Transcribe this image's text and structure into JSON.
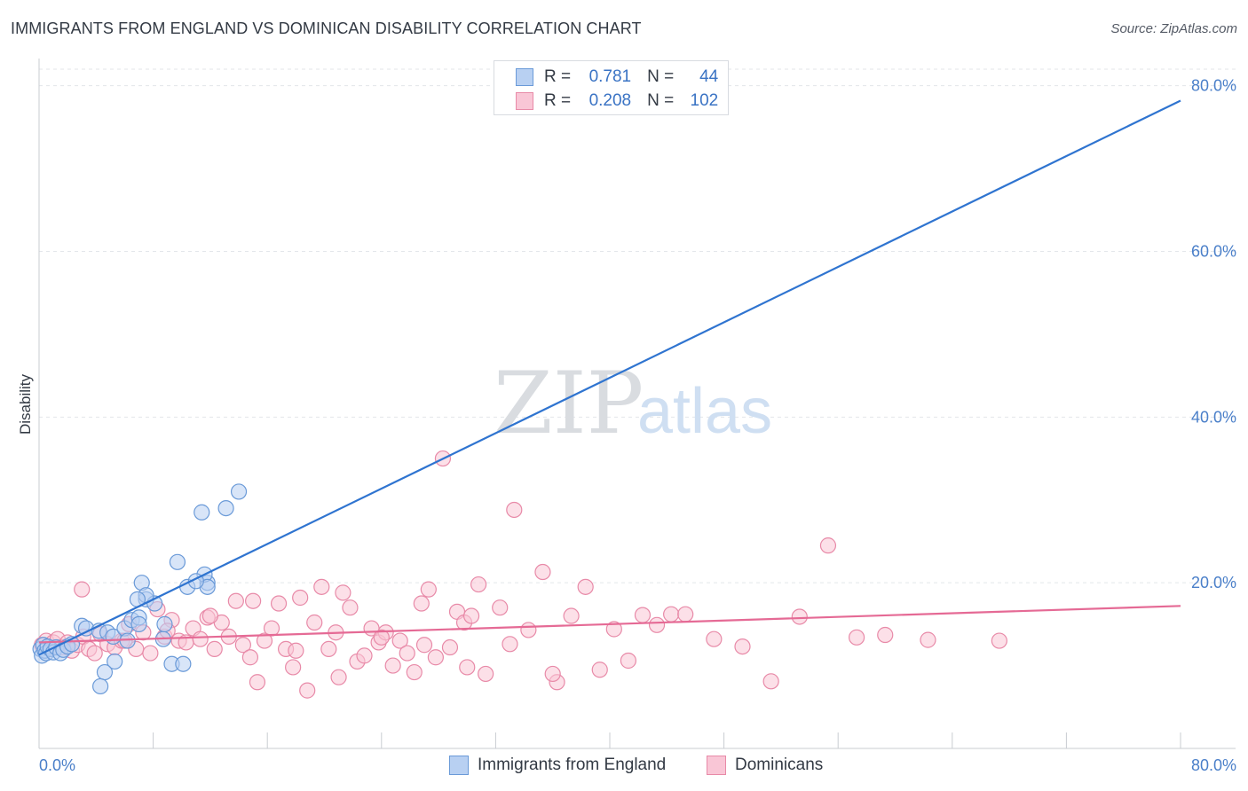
{
  "title": "IMMIGRANTS FROM ENGLAND VS DOMINICAN DISABILITY CORRELATION CHART",
  "source": "Source: ZipAtlas.com",
  "watermark": {
    "zip": "ZIP",
    "atlas": "atlas"
  },
  "legend": {
    "r_label": "R =",
    "n_label": "N =",
    "rows": [
      {
        "r": "0.781",
        "n": "44"
      },
      {
        "r": "0.208",
        "n": "102"
      }
    ]
  },
  "colors": {
    "blue_fill": "#b8d0f2",
    "blue_stroke": "#6a9ad8",
    "blue_line": "#2f74d0",
    "pink_fill": "#f9c6d6",
    "pink_stroke": "#e88aa8",
    "pink_line": "#e56a95"
  },
  "chart_data": {
    "type": "scatter",
    "title": "IMMIGRANTS FROM ENGLAND VS DOMINICAN DISABILITY CORRELATION CHART",
    "xlabel": "",
    "ylabel": "Disability",
    "xlim": [
      0,
      80
    ],
    "ylim": [
      0,
      82
    ],
    "x_tick_labels": [
      "0.0%",
      "80.0%"
    ],
    "y_ticks": [
      20,
      40,
      60,
      80
    ],
    "y_tick_labels": [
      "20.0%",
      "40.0%",
      "60.0%",
      "80.0%"
    ],
    "grid": true,
    "legend_position": "top-center",
    "series": [
      {
        "name": "Immigrants from England",
        "r": 0.781,
        "n": 44,
        "trend": {
          "x": [
            0,
            80
          ],
          "y": [
            11.3,
            78.2
          ]
        },
        "x": [
          0.1,
          0.2,
          0.3,
          0.4,
          0.5,
          0.6,
          0.8,
          1.0,
          1.2,
          1.5,
          1.7,
          2.0,
          2.3,
          3.0,
          3.3,
          4.2,
          4.8,
          5.2,
          6.0,
          6.5,
          7.0,
          7.5,
          8.1,
          8.7,
          8.8,
          9.7,
          9.3,
          10.1,
          11.4,
          11.8,
          13.1,
          14.0,
          11.6,
          11.8,
          10.4,
          11.0,
          7.2,
          7.5,
          6.9,
          7.0,
          6.2,
          5.3,
          4.6,
          4.3
        ],
        "y": [
          12.0,
          11.2,
          12.5,
          11.8,
          11.5,
          12.3,
          12.0,
          11.6,
          12.2,
          11.5,
          11.9,
          12.3,
          12.6,
          14.8,
          14.5,
          14.2,
          14.0,
          13.5,
          14.5,
          15.5,
          15.8,
          18.0,
          17.5,
          13.2,
          15.0,
          22.5,
          10.2,
          10.2,
          28.5,
          20.0,
          29.0,
          31.0,
          21.0,
          19.5,
          19.5,
          20.2,
          20.0,
          18.5,
          18.0,
          15.0,
          13.0,
          10.5,
          9.2,
          7.5
        ]
      },
      {
        "name": "Dominicans",
        "r": 0.208,
        "n": 102,
        "trend": {
          "x": [
            0,
            80
          ],
          "y": [
            12.8,
            17.2
          ]
        },
        "x": [
          0.2,
          0.5,
          0.8,
          1.0,
          1.3,
          1.6,
          2.0,
          2.3,
          2.7,
          3.1,
          3.5,
          3.9,
          4.3,
          4.8,
          5.3,
          5.8,
          6.3,
          6.8,
          7.3,
          7.8,
          8.3,
          8.8,
          9.3,
          9.8,
          10.3,
          10.8,
          11.3,
          11.8,
          12.3,
          12.8,
          13.3,
          13.8,
          14.3,
          14.8,
          15.3,
          15.8,
          16.3,
          16.8,
          17.3,
          17.8,
          18.3,
          18.8,
          19.3,
          19.8,
          20.3,
          20.8,
          21.3,
          21.8,
          22.3,
          22.8,
          23.3,
          23.8,
          24.3,
          24.8,
          25.3,
          25.8,
          26.3,
          26.8,
          27.3,
          27.8,
          28.3,
          28.8,
          29.3,
          29.8,
          30.3,
          30.8,
          31.3,
          32.3,
          33.3,
          34.3,
          35.3,
          36.3,
          37.3,
          38.3,
          39.3,
          40.3,
          41.3,
          42.3,
          43.3,
          44.3,
          45.3,
          47.3,
          49.3,
          51.3,
          53.3,
          55.3,
          57.3,
          59.3,
          62.3,
          67.3,
          3.0,
          6.0,
          9.0,
          12.0,
          15.0,
          18.0,
          21.0,
          24.0,
          27.0,
          30.0,
          33.0,
          36.0
        ],
        "y": [
          12.5,
          13.0,
          12.0,
          12.8,
          13.2,
          12.2,
          12.8,
          11.8,
          12.5,
          13.5,
          12.0,
          11.5,
          13.8,
          12.6,
          12.2,
          13.0,
          15.0,
          12.0,
          14.0,
          11.5,
          16.8,
          13.5,
          15.5,
          13.0,
          12.8,
          14.5,
          13.2,
          15.8,
          12.0,
          15.2,
          13.5,
          17.8,
          12.5,
          11.0,
          8.0,
          13.0,
          14.5,
          17.5,
          12.0,
          9.8,
          18.2,
          7.0,
          15.2,
          19.5,
          12.0,
          14.0,
          18.8,
          17.0,
          10.5,
          11.2,
          14.5,
          12.8,
          14.0,
          10.0,
          13.0,
          11.5,
          9.2,
          17.5,
          19.2,
          11.0,
          35.0,
          12.2,
          16.5,
          15.2,
          16.0,
          19.8,
          9.0,
          17.0,
          28.8,
          14.3,
          21.3,
          8.0,
          16.0,
          19.5,
          9.5,
          14.4,
          10.6,
          16.1,
          14.9,
          16.2,
          16.2,
          13.2,
          12.3,
          8.1,
          15.9,
          24.5,
          13.4,
          13.7,
          13.1,
          13.0,
          19.2,
          13.0,
          14.2,
          16.0,
          17.8,
          11.8,
          8.6,
          13.4,
          12.5,
          9.8,
          12.6,
          9.0
        ]
      }
    ]
  },
  "bottom_legend": [
    "Immigrants from England",
    "Dominicans"
  ]
}
